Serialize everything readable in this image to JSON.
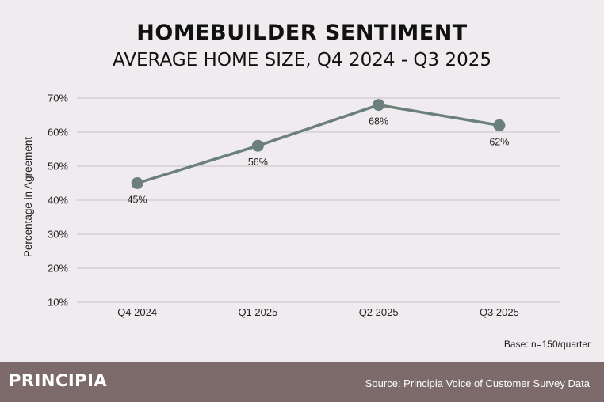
{
  "chart_data": {
    "type": "line",
    "title": "HOMEBUILDER SENTIMENT",
    "subtitle": "AVERAGE HOME SIZE, Q4 2024 - Q3 2025",
    "xlabel": "",
    "ylabel": "Percentage in Agreement",
    "categories": [
      "Q4 2024",
      "Q1 2025",
      "Q2 2025",
      "Q3 2025"
    ],
    "values": [
      45,
      56,
      68,
      62
    ],
    "data_labels": [
      "45%",
      "56%",
      "68%",
      "62%"
    ],
    "ylim": [
      10,
      70
    ],
    "yticks": [
      10,
      20,
      30,
      40,
      50,
      60,
      70
    ],
    "ytick_labels": [
      "10%",
      "20%",
      "30%",
      "40%",
      "50%",
      "60%",
      "70%"
    ],
    "grid": true,
    "line_color": "#6b807a",
    "grid_color": "#cfcacd"
  },
  "note": "Base: n=150/quarter",
  "footer": {
    "logo": "PRINCIPIA",
    "source": "Source: Principia Voice of Customer Survey Data",
    "background": "#7d6a6b"
  }
}
